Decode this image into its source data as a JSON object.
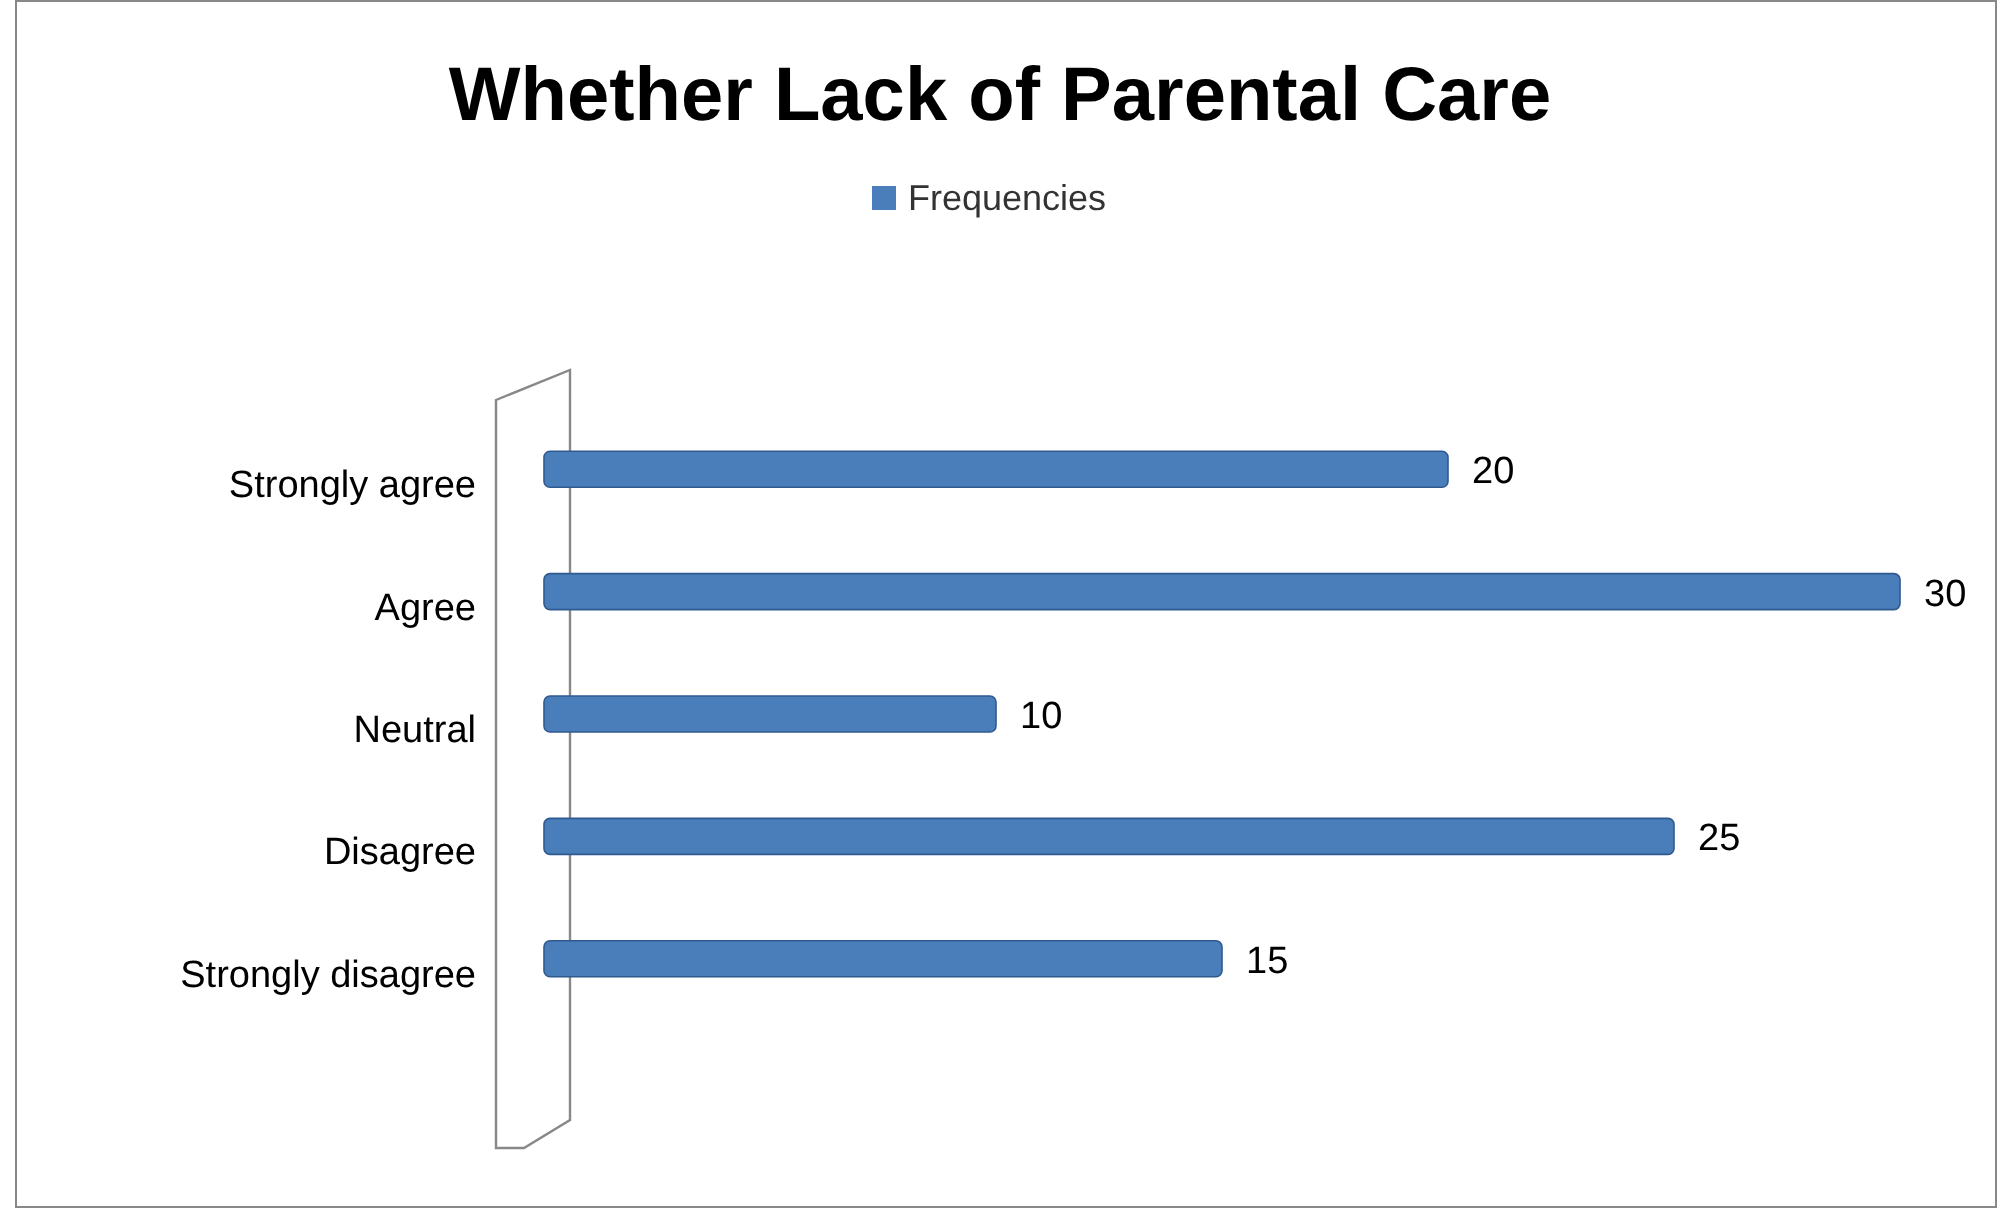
{
  "chart_data": {
    "type": "bar",
    "orientation": "horizontal",
    "title": "Whether Lack of Parental Care",
    "categories": [
      "Strongly agree",
      "Agree",
      "Neutral",
      "Disagree",
      "Strongly disagree"
    ],
    "series": [
      {
        "name": "Frequencies",
        "color": "#4a7ebb",
        "values": [
          20,
          30,
          10,
          25,
          15
        ]
      }
    ],
    "data_labels": true,
    "legend": "top",
    "grid": false
  }
}
